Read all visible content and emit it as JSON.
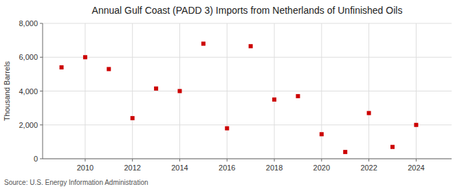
{
  "chart_data": {
    "type": "scatter",
    "title": "Annual Gulf Coast (PADD 3) Imports from Netherlands of Unfinished Oils",
    "ylabel": "Thousand Barrels",
    "source": "Source: U.S. Energy Information Administration",
    "x": [
      2009,
      2010,
      2011,
      2012,
      2013,
      2014,
      2015,
      2016,
      2017,
      2018,
      2019,
      2020,
      2021,
      2022,
      2023,
      2024
    ],
    "values": [
      5400,
      6000,
      5300,
      2400,
      4150,
      4000,
      6800,
      1800,
      6650,
      3500,
      3700,
      1450,
      400,
      2700,
      700,
      2000
    ],
    "color": "#cc0000",
    "marker": "square",
    "xlim": [
      2008.2,
      2025.5
    ],
    "xticks": [
      2010,
      2012,
      2014,
      2016,
      2018,
      2020,
      2022,
      2024
    ],
    "ylim": [
      0,
      8000
    ],
    "yticks": [
      0,
      {
        "value": 2000,
        "label": "2,000"
      },
      {
        "value": 4000,
        "label": "4,000"
      },
      {
        "value": 6000,
        "label": "6,000"
      },
      {
        "value": 8000,
        "label": "8,000"
      }
    ],
    "grid": true
  }
}
